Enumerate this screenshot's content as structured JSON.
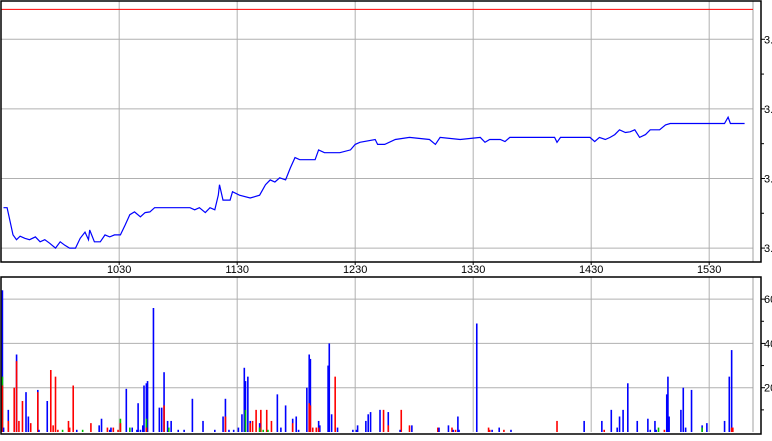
{
  "chart_data": [
    {
      "type": "line",
      "panel": "price",
      "x_unit": "hour of day (decimal)",
      "xlim": [
        9.49,
        15.91
      ],
      "ylim": [
        -0.2,
        3.55
      ],
      "y_ticks": [
        0,
        1,
        2,
        3
      ],
      "y_tick_labels": [
        "3.",
        "3.",
        "3.",
        "3."
      ],
      "x_ticks": [
        10.5,
        11.5,
        12.5,
        13.5,
        14.5,
        15.5
      ],
      "x_tick_labels": [
        "1030",
        "1130",
        "1230",
        "1330",
        "1430",
        "1530"
      ],
      "grid": true,
      "reference_line": {
        "value": 3.43,
        "color": "#ff0000"
      },
      "series": [
        {
          "color": "#0000ff",
          "points": [
            [
              9.52,
              0.58
            ],
            [
              9.55,
              0.58
            ],
            [
              9.57,
              0.43
            ],
            [
              9.6,
              0.19
            ],
            [
              9.63,
              0.12
            ],
            [
              9.66,
              0.17
            ],
            [
              9.7,
              0.14
            ],
            [
              9.74,
              0.12
            ],
            [
              9.79,
              0.16
            ],
            [
              9.83,
              0.09
            ],
            [
              9.87,
              0.12
            ],
            [
              9.91,
              0.07
            ],
            [
              9.96,
              0
            ],
            [
              10.0,
              0.09
            ],
            [
              10.04,
              0.04
            ],
            [
              10.08,
              0
            ],
            [
              10.13,
              0
            ],
            [
              10.17,
              0.14
            ],
            [
              10.21,
              0.23
            ],
            [
              10.24,
              0.12
            ],
            [
              10.25,
              0.26
            ],
            [
              10.29,
              0.09
            ],
            [
              10.34,
              0.09
            ],
            [
              10.38,
              0.19
            ],
            [
              10.42,
              0.16
            ],
            [
              10.46,
              0.19
            ],
            [
              10.51,
              0.19
            ],
            [
              10.55,
              0.33
            ],
            [
              10.59,
              0.48
            ],
            [
              10.63,
              0.52
            ],
            [
              10.68,
              0.45
            ],
            [
              10.72,
              0.51
            ],
            [
              10.76,
              0.52
            ],
            [
              10.8,
              0.58
            ],
            [
              10.85,
              0.58
            ],
            [
              10.93,
              0.58
            ],
            [
              11.02,
              0.58
            ],
            [
              11.1,
              0.58
            ],
            [
              11.14,
              0.55
            ],
            [
              11.18,
              0.58
            ],
            [
              11.23,
              0.51
            ],
            [
              11.27,
              0.58
            ],
            [
              11.31,
              0.55
            ],
            [
              11.34,
              0.76
            ],
            [
              11.35,
              0.91
            ],
            [
              11.38,
              0.69
            ],
            [
              11.44,
              0.69
            ],
            [
              11.46,
              0.81
            ],
            [
              11.52,
              0.76
            ],
            [
              11.61,
              0.72
            ],
            [
              11.69,
              0.76
            ],
            [
              11.74,
              0.91
            ],
            [
              11.78,
              0.98
            ],
            [
              11.82,
              0.95
            ],
            [
              11.86,
              1.01
            ],
            [
              11.91,
              0.98
            ],
            [
              11.95,
              1.15
            ],
            [
              11.99,
              1.3
            ],
            [
              12.03,
              1.27
            ],
            [
              12.16,
              1.27
            ],
            [
              12.19,
              1.41
            ],
            [
              12.24,
              1.37
            ],
            [
              12.37,
              1.37
            ],
            [
              12.46,
              1.41
            ],
            [
              12.5,
              1.49
            ],
            [
              12.54,
              1.52
            ],
            [
              12.67,
              1.56
            ],
            [
              12.69,
              1.49
            ],
            [
              12.75,
              1.49
            ],
            [
              12.84,
              1.56
            ],
            [
              12.96,
              1.59
            ],
            [
              13.13,
              1.56
            ],
            [
              13.18,
              1.49
            ],
            [
              13.22,
              1.59
            ],
            [
              13.39,
              1.56
            ],
            [
              13.56,
              1.59
            ],
            [
              13.6,
              1.52
            ],
            [
              13.64,
              1.56
            ],
            [
              13.73,
              1.56
            ],
            [
              13.77,
              1.53
            ],
            [
              13.81,
              1.59
            ],
            [
              14.19,
              1.59
            ],
            [
              14.21,
              1.52
            ],
            [
              14.24,
              1.59
            ],
            [
              14.49,
              1.59
            ],
            [
              14.53,
              1.53
            ],
            [
              14.57,
              1.59
            ],
            [
              14.62,
              1.56
            ],
            [
              14.66,
              1.59
            ],
            [
              14.7,
              1.63
            ],
            [
              14.74,
              1.7
            ],
            [
              14.79,
              1.66
            ],
            [
              14.83,
              1.67
            ],
            [
              14.87,
              1.7
            ],
            [
              14.91,
              1.59
            ],
            [
              14.96,
              1.63
            ],
            [
              15.0,
              1.7
            ],
            [
              15.08,
              1.7
            ],
            [
              15.13,
              1.77
            ],
            [
              15.17,
              1.79
            ],
            [
              15.63,
              1.79
            ],
            [
              15.66,
              1.88
            ],
            [
              15.68,
              1.79
            ],
            [
              15.8,
              1.79
            ]
          ]
        }
      ]
    },
    {
      "type": "bar",
      "panel": "volume",
      "ylim": [
        0,
        70
      ],
      "y_ticks": [
        20,
        40,
        60
      ],
      "y_tick_labels": [
        "20",
        "40",
        "60"
      ],
      "grid": true,
      "colors": {
        "b": "#0000ff",
        "r": "#ff0000",
        "g": "#00c000"
      },
      "bars": [
        [
          9.51,
          64,
          "b"
        ],
        [
          9.51,
          25,
          "g"
        ],
        [
          9.51,
          21,
          "r"
        ],
        [
          9.52,
          2,
          "b"
        ],
        [
          9.56,
          10,
          "b"
        ],
        [
          9.56,
          5,
          "r"
        ],
        [
          9.61,
          20,
          "r"
        ],
        [
          9.63,
          35,
          "b"
        ],
        [
          9.63,
          32,
          "r"
        ],
        [
          9.65,
          5,
          "r"
        ],
        [
          9.68,
          14,
          "r"
        ],
        [
          9.71,
          18,
          "b"
        ],
        [
          9.73,
          7,
          "b"
        ],
        [
          9.75,
          4,
          "r"
        ],
        [
          9.81,
          19,
          "b"
        ],
        [
          9.81,
          18,
          "r"
        ],
        [
          9.82,
          1,
          "b"
        ],
        [
          9.89,
          14,
          "b"
        ],
        [
          9.92,
          28,
          "r"
        ],
        [
          9.94,
          3,
          "r"
        ],
        [
          9.96,
          25,
          "r"
        ],
        [
          9.98,
          1,
          "r"
        ],
        [
          10.02,
          1,
          "g"
        ],
        [
          10.07,
          5,
          "r"
        ],
        [
          10.08,
          2,
          "r"
        ],
        [
          10.11,
          21,
          "r"
        ],
        [
          10.14,
          1,
          "b"
        ],
        [
          10.19,
          1,
          "g"
        ],
        [
          10.26,
          4,
          "r"
        ],
        [
          10.33,
          3,
          "b"
        ],
        [
          10.35,
          6,
          "b"
        ],
        [
          10.4,
          2,
          "r"
        ],
        [
          10.42,
          1,
          "b"
        ],
        [
          10.43,
          2,
          "b"
        ],
        [
          10.45,
          2,
          "r"
        ],
        [
          10.49,
          1,
          "r"
        ],
        [
          10.51,
          6,
          "g"
        ],
        [
          10.51,
          4,
          "r"
        ],
        [
          10.56,
          19.5,
          "b"
        ],
        [
          10.59,
          2,
          "g"
        ],
        [
          10.61,
          2,
          "b"
        ],
        [
          10.65,
          1,
          "b"
        ],
        [
          10.66,
          13,
          "b"
        ],
        [
          10.68,
          1,
          "b"
        ],
        [
          10.7,
          3,
          "b"
        ],
        [
          10.71,
          21,
          "b"
        ],
        [
          10.73,
          22,
          "b"
        ],
        [
          10.73,
          6,
          "g"
        ],
        [
          10.73,
          2,
          "r"
        ],
        [
          10.74,
          23,
          "b"
        ],
        [
          10.79,
          56,
          "b"
        ],
        [
          10.84,
          11,
          "b"
        ],
        [
          10.86,
          11,
          "b"
        ],
        [
          10.88,
          27,
          "b"
        ],
        [
          10.88,
          12,
          "r"
        ],
        [
          10.91,
          5,
          "b"
        ],
        [
          10.92,
          2,
          "g"
        ],
        [
          10.94,
          5,
          "b"
        ],
        [
          11.0,
          1,
          "b"
        ],
        [
          11.05,
          1,
          "b"
        ],
        [
          11.12,
          15,
          "b"
        ],
        [
          11.21,
          5,
          "b"
        ],
        [
          11.31,
          1,
          "b"
        ],
        [
          11.38,
          7,
          "b"
        ],
        [
          11.4,
          15,
          "b"
        ],
        [
          11.4,
          7,
          "r"
        ],
        [
          11.43,
          1,
          "b"
        ],
        [
          11.47,
          1,
          "b"
        ],
        [
          11.51,
          2,
          "b"
        ],
        [
          11.54,
          8,
          "b"
        ],
        [
          11.56,
          29,
          "b"
        ],
        [
          11.57,
          23,
          "b"
        ],
        [
          11.57,
          10,
          "g"
        ],
        [
          11.59,
          25,
          "b"
        ],
        [
          11.61,
          5,
          "b"
        ],
        [
          11.61,
          4,
          "r"
        ],
        [
          11.63,
          5,
          "r"
        ],
        [
          11.66,
          10,
          "r"
        ],
        [
          11.69,
          4,
          "b"
        ],
        [
          11.69,
          2,
          "g"
        ],
        [
          11.72,
          1,
          "g"
        ],
        [
          11.76,
          1,
          "g"
        ],
        [
          11.79,
          5,
          "r"
        ],
        [
          11.7,
          10,
          "r"
        ],
        [
          11.75,
          10,
          "r"
        ],
        [
          11.84,
          17,
          "b"
        ],
        [
          11.87,
          2,
          "b"
        ],
        [
          11.91,
          12,
          "b"
        ],
        [
          11.97,
          6,
          "b"
        ],
        [
          11.97,
          4,
          "r"
        ],
        [
          12.0,
          7,
          "b"
        ],
        [
          12.02,
          1,
          "b"
        ],
        [
          12.09,
          20,
          "b"
        ],
        [
          12.11,
          35,
          "b"
        ],
        [
          12.11,
          13,
          "r"
        ],
        [
          12.12,
          33,
          "b"
        ],
        [
          12.12,
          12,
          "r"
        ],
        [
          12.14,
          2,
          "r"
        ],
        [
          12.17,
          2,
          "r"
        ],
        [
          12.19,
          5,
          "b"
        ],
        [
          12.19,
          2,
          "r"
        ],
        [
          12.2,
          3,
          "b"
        ],
        [
          12.27,
          30,
          "b"
        ],
        [
          12.28,
          40,
          "b"
        ],
        [
          12.3,
          8,
          "b"
        ],
        [
          12.33,
          25,
          "r"
        ],
        [
          12.35,
          2,
          "b"
        ],
        [
          12.48,
          1,
          "b"
        ],
        [
          12.51,
          1,
          "b"
        ],
        [
          12.52,
          3,
          "b"
        ],
        [
          12.59,
          5,
          "b"
        ],
        [
          12.61,
          8,
          "b"
        ],
        [
          12.63,
          9,
          "b"
        ],
        [
          12.71,
          10,
          "b"
        ],
        [
          12.74,
          10,
          "r"
        ],
        [
          12.78,
          9,
          "b"
        ],
        [
          12.78,
          3,
          "r"
        ],
        [
          12.88,
          1,
          "b"
        ],
        [
          12.89,
          10,
          "r"
        ],
        [
          12.96,
          3,
          "r"
        ],
        [
          12.98,
          3,
          "b"
        ],
        [
          13.2,
          2,
          "r"
        ],
        [
          13.21,
          2,
          "b"
        ],
        [
          13.29,
          3,
          "b"
        ],
        [
          13.32,
          2,
          "r"
        ],
        [
          13.33,
          1,
          "b"
        ],
        [
          13.35,
          1,
          "r"
        ],
        [
          13.37,
          7,
          "b"
        ],
        [
          13.38,
          1,
          "b"
        ],
        [
          13.53,
          49,
          "b"
        ],
        [
          13.63,
          2,
          "r"
        ],
        [
          13.64,
          1,
          "r"
        ],
        [
          13.66,
          1,
          "b"
        ],
        [
          13.72,
          2,
          "b"
        ],
        [
          13.76,
          1,
          "r"
        ],
        [
          13.82,
          1,
          "b"
        ],
        [
          14.21,
          5,
          "r"
        ],
        [
          14.44,
          5,
          "b"
        ],
        [
          14.59,
          5,
          "b"
        ],
        [
          14.61,
          1,
          "r"
        ],
        [
          14.67,
          10,
          "b"
        ],
        [
          14.72,
          2,
          "b"
        ],
        [
          14.74,
          7,
          "b"
        ],
        [
          14.77,
          10,
          "b"
        ],
        [
          14.81,
          22,
          "b"
        ],
        [
          14.89,
          5,
          "b"
        ],
        [
          14.98,
          6,
          "b"
        ],
        [
          15.0,
          1,
          "b"
        ],
        [
          15.04,
          5,
          "b"
        ],
        [
          15.05,
          1,
          "b"
        ],
        [
          15.07,
          2,
          "g"
        ],
        [
          15.12,
          1,
          "r"
        ],
        [
          15.14,
          17,
          "b"
        ],
        [
          15.15,
          25,
          "b"
        ],
        [
          15.16,
          7,
          "b"
        ],
        [
          15.26,
          10,
          "b"
        ],
        [
          15.28,
          20,
          "b"
        ],
        [
          15.3,
          2,
          "b"
        ],
        [
          15.35,
          19,
          "b"
        ],
        [
          15.44,
          3,
          "b"
        ],
        [
          15.44,
          2,
          "g"
        ],
        [
          15.48,
          4,
          "b"
        ],
        [
          15.63,
          5,
          "b"
        ],
        [
          15.67,
          25,
          "b"
        ],
        [
          15.69,
          37,
          "b"
        ],
        [
          15.69,
          2,
          "r"
        ],
        [
          15.7,
          2,
          "r"
        ]
      ]
    }
  ]
}
